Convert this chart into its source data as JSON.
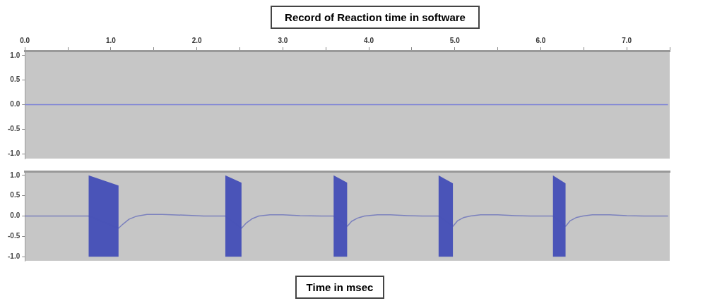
{
  "chart_data": [
    {
      "type": "line",
      "title": "Record of Reaction time in software",
      "xlim": [
        0,
        7.5
      ],
      "xticks": [
        {
          "value": 0,
          "label": "0.0"
        },
        {
          "value": 0.5,
          "label": null
        },
        {
          "value": 1,
          "label": "1.0"
        },
        {
          "value": 1.5,
          "label": null
        },
        {
          "value": 2,
          "label": "2.0"
        },
        {
          "value": 2.5,
          "label": null
        },
        {
          "value": 3,
          "label": "3.0"
        },
        {
          "value": 3.5,
          "label": null
        },
        {
          "value": 4,
          "label": "4.0"
        },
        {
          "value": 4.5,
          "label": null
        },
        {
          "value": 5,
          "label": "5.0"
        },
        {
          "value": 5.5,
          "label": null
        },
        {
          "value": 6,
          "label": "6.0"
        },
        {
          "value": 6.5,
          "label": null
        },
        {
          "value": 7,
          "label": "7.0"
        },
        {
          "value": 7.5,
          "label": null
        }
      ],
      "ylim": [
        -1.1,
        1.1
      ],
      "yticks": [
        {
          "value": 1,
          "label": "1.0"
        },
        {
          "value": 0.5,
          "label": "0.5"
        },
        {
          "value": 0,
          "label": "0.0"
        },
        {
          "value": -0.5,
          "label": "-0.5"
        },
        {
          "value": -1,
          "label": "-1.0"
        }
      ],
      "series": [
        {
          "color": "#7a80d8",
          "x": [
            0,
            7.48
          ],
          "values": [
            0,
            0
          ]
        }
      ]
    },
    {
      "type": "line",
      "xlabel": "Time in msec",
      "tick_labels": "y",
      "xlim": [
        0,
        7.5
      ],
      "ylim": [
        -1.1,
        1.1
      ],
      "yticks": [
        {
          "value": 1,
          "label": "1.0"
        },
        {
          "value": 0.5,
          "label": "0.5"
        },
        {
          "value": 0,
          "label": "0.0"
        },
        {
          "value": -0.5,
          "label": "-0.5"
        },
        {
          "value": -1,
          "label": "-1.0"
        }
      ],
      "series": [
        {
          "color": "#4a54b8",
          "x": [
            0,
            0.74,
            1.09,
            1.14,
            1.21,
            1.29,
            1.42,
            1.6,
            1.85,
            2.08,
            2.33,
            2.52,
            2.57,
            2.64,
            2.72,
            2.85,
            3.0,
            3.2,
            3.45,
            3.59,
            3.75,
            3.8,
            3.87,
            3.95,
            4.1,
            4.25,
            4.45,
            4.62,
            4.81,
            4.98,
            5.03,
            5.1,
            5.18,
            5.3,
            5.5,
            5.7,
            5.88,
            6.14,
            6.29,
            6.34,
            6.41,
            6.49,
            6.6,
            6.8,
            7.0,
            7.2,
            7.48
          ],
          "values": [
            0,
            0,
            -0.3,
            -0.2,
            -0.08,
            -0.01,
            0.04,
            0.04,
            0.02,
            0,
            0,
            -0.3,
            -0.18,
            -0.07,
            0,
            0.03,
            0.03,
            0.01,
            0,
            0,
            -0.25,
            -0.13,
            -0.05,
            0,
            0.03,
            0.03,
            0.01,
            0,
            0,
            -0.25,
            -0.12,
            -0.04,
            0,
            0.03,
            0.03,
            0.01,
            0,
            0,
            -0.25,
            -0.12,
            -0.04,
            0,
            0.03,
            0.03,
            0.01,
            0,
            0
          ],
          "upper": [
            null,
            1,
            0.75,
            null,
            null,
            null,
            null,
            null,
            null,
            null,
            1,
            0.82,
            null,
            null,
            null,
            null,
            null,
            null,
            null,
            1,
            0.82,
            null,
            null,
            null,
            null,
            null,
            null,
            null,
            1,
            0.8,
            null,
            null,
            null,
            null,
            null,
            null,
            null,
            1,
            0.8,
            null,
            null,
            null,
            null,
            null,
            null,
            null,
            null
          ],
          "lower": [
            null,
            -1,
            -1,
            null,
            null,
            null,
            null,
            null,
            null,
            null,
            -1,
            -1,
            null,
            null,
            null,
            null,
            null,
            null,
            null,
            -1,
            -1,
            null,
            null,
            null,
            null,
            null,
            null,
            null,
            -1,
            -1,
            null,
            null,
            null,
            null,
            null,
            null,
            null,
            -1,
            -1,
            null,
            null,
            null,
            null,
            null,
            null,
            null,
            null
          ]
        }
      ]
    }
  ]
}
